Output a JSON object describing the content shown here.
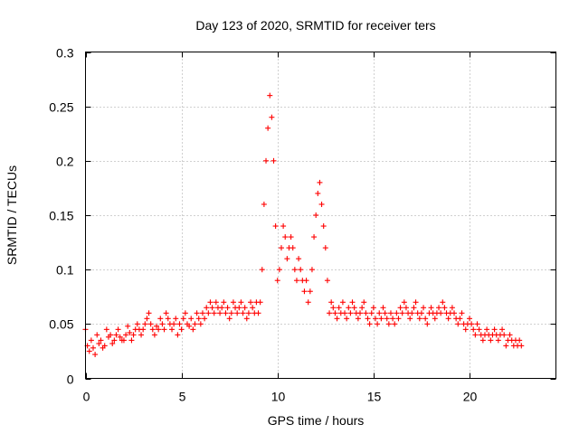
{
  "chart_data": {
    "type": "scatter",
    "title": "Day 123 of 2020, SRMTID for receiver ters",
    "xlabel": "GPS time / hours",
    "ylabel": "SRMTID / TECUs",
    "xlim": [
      0,
      24.5
    ],
    "ylim": [
      0,
      0.3
    ],
    "xticks": [
      0,
      5,
      10,
      15,
      20
    ],
    "xtick_labels": [
      "0",
      "5",
      "10",
      "15",
      "20"
    ],
    "yticks": [
      0,
      0.05,
      0.1,
      0.15,
      0.2,
      0.25,
      0.3
    ],
    "ytick_labels": [
      "0",
      "0.05",
      "0.1",
      "0.15",
      "0.2",
      "0.25",
      "0.3"
    ],
    "grid": true,
    "marker": "plus",
    "color": "#ff0000",
    "series": [
      {
        "name": "SRMTID",
        "x": [
          0.0,
          0.1,
          0.2,
          0.3,
          0.4,
          0.5,
          0.6,
          0.7,
          0.8,
          0.9,
          1.0,
          1.1,
          1.2,
          1.3,
          1.4,
          1.5,
          1.6,
          1.7,
          1.8,
          1.9,
          2.0,
          2.1,
          2.2,
          2.3,
          2.4,
          2.5,
          2.6,
          2.7,
          2.8,
          2.9,
          3.0,
          3.1,
          3.2,
          3.3,
          3.4,
          3.5,
          3.6,
          3.7,
          3.8,
          3.9,
          4.0,
          4.1,
          4.2,
          4.3,
          4.4,
          4.5,
          4.6,
          4.7,
          4.8,
          4.9,
          5.0,
          5.1,
          5.2,
          5.3,
          5.4,
          5.5,
          5.6,
          5.7,
          5.8,
          5.9,
          6.0,
          6.1,
          6.2,
          6.3,
          6.4,
          6.5,
          6.6,
          6.7,
          6.8,
          6.9,
          7.0,
          7.1,
          7.2,
          7.3,
          7.4,
          7.5,
          7.6,
          7.7,
          7.8,
          7.9,
          8.0,
          8.1,
          8.2,
          8.3,
          8.4,
          8.5,
          8.6,
          8.7,
          8.8,
          8.9,
          9.0,
          9.1,
          9.2,
          9.3,
          9.4,
          9.5,
          9.6,
          9.7,
          9.8,
          9.9,
          10.0,
          10.1,
          10.2,
          10.3,
          10.4,
          10.5,
          10.6,
          10.7,
          10.8,
          10.9,
          11.0,
          11.1,
          11.2,
          11.3,
          11.4,
          11.5,
          11.6,
          11.7,
          11.8,
          11.9,
          12.0,
          12.1,
          12.2,
          12.3,
          12.4,
          12.5,
          12.6,
          12.7,
          12.8,
          12.9,
          13.0,
          13.1,
          13.2,
          13.3,
          13.4,
          13.5,
          13.6,
          13.7,
          13.8,
          13.9,
          14.0,
          14.1,
          14.2,
          14.3,
          14.4,
          14.5,
          14.6,
          14.7,
          14.8,
          14.9,
          15.0,
          15.1,
          15.2,
          15.3,
          15.4,
          15.5,
          15.6,
          15.7,
          15.8,
          15.9,
          16.0,
          16.1,
          16.2,
          16.3,
          16.4,
          16.5,
          16.6,
          16.7,
          16.8,
          16.9,
          17.0,
          17.1,
          17.2,
          17.3,
          17.4,
          17.5,
          17.6,
          17.7,
          17.8,
          17.9,
          18.0,
          18.1,
          18.2,
          18.3,
          18.4,
          18.5,
          18.6,
          18.7,
          18.8,
          18.9,
          19.0,
          19.1,
          19.2,
          19.3,
          19.4,
          19.5,
          19.6,
          19.7,
          19.8,
          19.9,
          20.0,
          20.1,
          20.2,
          20.3,
          20.4,
          20.5,
          20.6,
          20.7,
          20.8,
          20.9,
          21.0,
          21.1,
          21.2,
          21.3,
          21.4,
          21.5,
          21.6,
          21.7,
          21.8,
          21.9,
          22.0,
          22.1,
          22.2,
          22.3,
          22.4,
          22.5,
          22.6,
          22.7
        ],
        "y": [
          0.045,
          0.03,
          0.025,
          0.035,
          0.028,
          0.022,
          0.04,
          0.032,
          0.035,
          0.028,
          0.03,
          0.045,
          0.038,
          0.04,
          0.032,
          0.035,
          0.04,
          0.045,
          0.038,
          0.035,
          0.035,
          0.04,
          0.048,
          0.042,
          0.035,
          0.04,
          0.045,
          0.05,
          0.045,
          0.04,
          0.045,
          0.05,
          0.055,
          0.06,
          0.05,
          0.045,
          0.04,
          0.048,
          0.045,
          0.055,
          0.05,
          0.045,
          0.06,
          0.055,
          0.05,
          0.045,
          0.05,
          0.055,
          0.04,
          0.05,
          0.045,
          0.055,
          0.06,
          0.05,
          0.048,
          0.055,
          0.045,
          0.05,
          0.06,
          0.055,
          0.05,
          0.06,
          0.055,
          0.065,
          0.06,
          0.07,
          0.065,
          0.06,
          0.07,
          0.065,
          0.06,
          0.065,
          0.07,
          0.06,
          0.065,
          0.055,
          0.06,
          0.07,
          0.065,
          0.06,
          0.065,
          0.07,
          0.06,
          0.065,
          0.055,
          0.06,
          0.07,
          0.065,
          0.06,
          0.07,
          0.06,
          0.07,
          0.1,
          0.16,
          0.2,
          0.23,
          0.26,
          0.24,
          0.2,
          0.14,
          0.09,
          0.1,
          0.12,
          0.14,
          0.13,
          0.11,
          0.12,
          0.13,
          0.12,
          0.1,
          0.09,
          0.11,
          0.1,
          0.09,
          0.08,
          0.09,
          0.07,
          0.08,
          0.1,
          0.13,
          0.15,
          0.17,
          0.18,
          0.16,
          0.14,
          0.12,
          0.09,
          0.06,
          0.07,
          0.065,
          0.06,
          0.055,
          0.065,
          0.06,
          0.07,
          0.06,
          0.055,
          0.065,
          0.06,
          0.07,
          0.065,
          0.06,
          0.055,
          0.06,
          0.065,
          0.07,
          0.06,
          0.055,
          0.05,
          0.06,
          0.065,
          0.055,
          0.05,
          0.06,
          0.055,
          0.065,
          0.06,
          0.055,
          0.05,
          0.06,
          0.055,
          0.05,
          0.06,
          0.055,
          0.065,
          0.06,
          0.07,
          0.065,
          0.06,
          0.055,
          0.06,
          0.065,
          0.07,
          0.06,
          0.055,
          0.06,
          0.065,
          0.055,
          0.05,
          0.06,
          0.065,
          0.06,
          0.055,
          0.06,
          0.065,
          0.06,
          0.07,
          0.065,
          0.06,
          0.055,
          0.06,
          0.065,
          0.06,
          0.055,
          0.05,
          0.055,
          0.06,
          0.05,
          0.045,
          0.05,
          0.055,
          0.05,
          0.045,
          0.04,
          0.05,
          0.045,
          0.04,
          0.035,
          0.04,
          0.045,
          0.04,
          0.035,
          0.04,
          0.045,
          0.04,
          0.035,
          0.04,
          0.045,
          0.04,
          0.03,
          0.035,
          0.04,
          0.035,
          0.03,
          0.035,
          0.03,
          0.035,
          0.03
        ]
      }
    ]
  }
}
